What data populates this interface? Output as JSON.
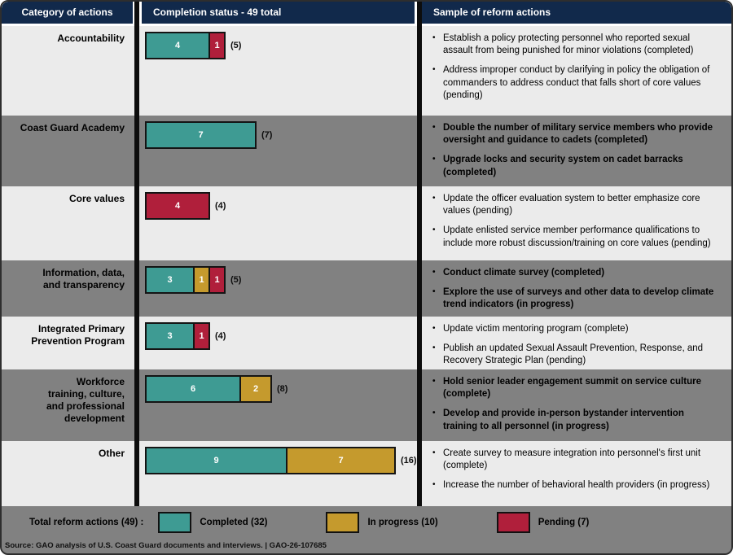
{
  "header": {
    "col1": "Category of actions",
    "col2": "Completion status - 49 total",
    "col3": "Sample of reform actions"
  },
  "colors": {
    "completed": "#3e9b93",
    "in_progress": "#c59a2d",
    "pending": "#b01f3b",
    "header_navy": "#11294b",
    "row_light": "#ebebeb",
    "row_gray": "#818181",
    "divider_black": "#0d0d0d"
  },
  "rows": [
    {
      "category": "Accountability",
      "segments": [
        {
          "status": "completed",
          "value": 4
        },
        {
          "status": "pending",
          "value": 1
        }
      ],
      "total_label": "(5)",
      "samples": [
        "Establish a policy protecting personnel who reported sexual assault from being punished for minor violations (completed)",
        "Address improper conduct by clarifying in policy the obligation of commanders to address conduct that falls short of core values (pending)"
      ]
    },
    {
      "category": "Coast Guard Academy",
      "segments": [
        {
          "status": "completed",
          "value": 7
        }
      ],
      "total_label": "(7)",
      "samples": [
        "Double the number of military service members who provide oversight and guidance to cadets (completed)",
        "Upgrade locks and security system on cadet barracks (completed)"
      ]
    },
    {
      "category": "Core values",
      "segments": [
        {
          "status": "pending",
          "value": 4
        }
      ],
      "total_label": "(4)",
      "samples": [
        "Update the officer evaluation system to better emphasize core values (pending)",
        "Update enlisted service member performance qualifications to include more robust discussion/training on core values (pending)"
      ]
    },
    {
      "category": "Information, data,\nand transparency",
      "segments": [
        {
          "status": "completed",
          "value": 3
        },
        {
          "status": "in_progress",
          "value": 1
        },
        {
          "status": "pending",
          "value": 1
        }
      ],
      "total_label": "(5)",
      "samples": [
        "Conduct climate survey (completed)",
        "Explore the use of surveys and other data to develop climate trend indicators (in progress)"
      ]
    },
    {
      "category": "Integrated Primary\nPrevention Program",
      "segments": [
        {
          "status": "completed",
          "value": 3
        },
        {
          "status": "pending",
          "value": 1
        }
      ],
      "total_label": "(4)",
      "samples": [
        "Update victim mentoring program (complete)",
        "Publish an updated Sexual Assault Prevention, Response, and Recovery Strategic Plan (pending)"
      ]
    },
    {
      "category": "Workforce\ntraining, culture,\nand professional\ndevelopment",
      "segments": [
        {
          "status": "completed",
          "value": 6
        },
        {
          "status": "in_progress",
          "value": 2
        }
      ],
      "total_label": "(8)",
      "samples": [
        "Hold senior leader engagement summit on service culture (complete)",
        "Develop and provide in-person bystander intervention training to all personnel (in progress)"
      ]
    },
    {
      "category": "Other",
      "segments": [
        {
          "status": "completed",
          "value": 9
        },
        {
          "status": "in_progress",
          "value": 7
        }
      ],
      "total_label": "(16)",
      "samples": [
        "Create survey to measure integration into personnel's first unit (complete)",
        "Increase the number of behavioral health providers (in progress)"
      ]
    }
  ],
  "legend": {
    "title": "Total reform actions (49) :",
    "items": [
      {
        "status": "completed",
        "label": "Completed (32)"
      },
      {
        "status": "in_progress",
        "label": "In progress (10)"
      },
      {
        "status": "pending",
        "label": "Pending (7)"
      }
    ]
  },
  "source": "Source: GAO analysis of U.S. Coast Guard documents and interviews.  |  GAO-26-107685",
  "chart_data": {
    "type": "bar",
    "orientation": "horizontal",
    "stacked": true,
    "title": "Completion status - 49 total",
    "categories": [
      "Accountability",
      "Coast Guard Academy",
      "Core values",
      "Information, data, and transparency",
      "Integrated Primary Prevention Program",
      "Workforce training, culture, and professional development",
      "Other"
    ],
    "series": [
      {
        "name": "Completed (32)",
        "color": "#3e9b93",
        "values": [
          4,
          7,
          0,
          3,
          3,
          6,
          9
        ]
      },
      {
        "name": "In progress (10)",
        "color": "#c59a2d",
        "values": [
          0,
          0,
          0,
          1,
          0,
          2,
          7
        ]
      },
      {
        "name": "Pending (7)",
        "color": "#b01f3b",
        "values": [
          1,
          0,
          4,
          1,
          1,
          0,
          0
        ]
      }
    ],
    "totals": [
      5,
      7,
      4,
      5,
      4,
      8,
      16
    ],
    "grand_total": 49,
    "value_labels": "inside-segments",
    "legend_position": "bottom"
  }
}
